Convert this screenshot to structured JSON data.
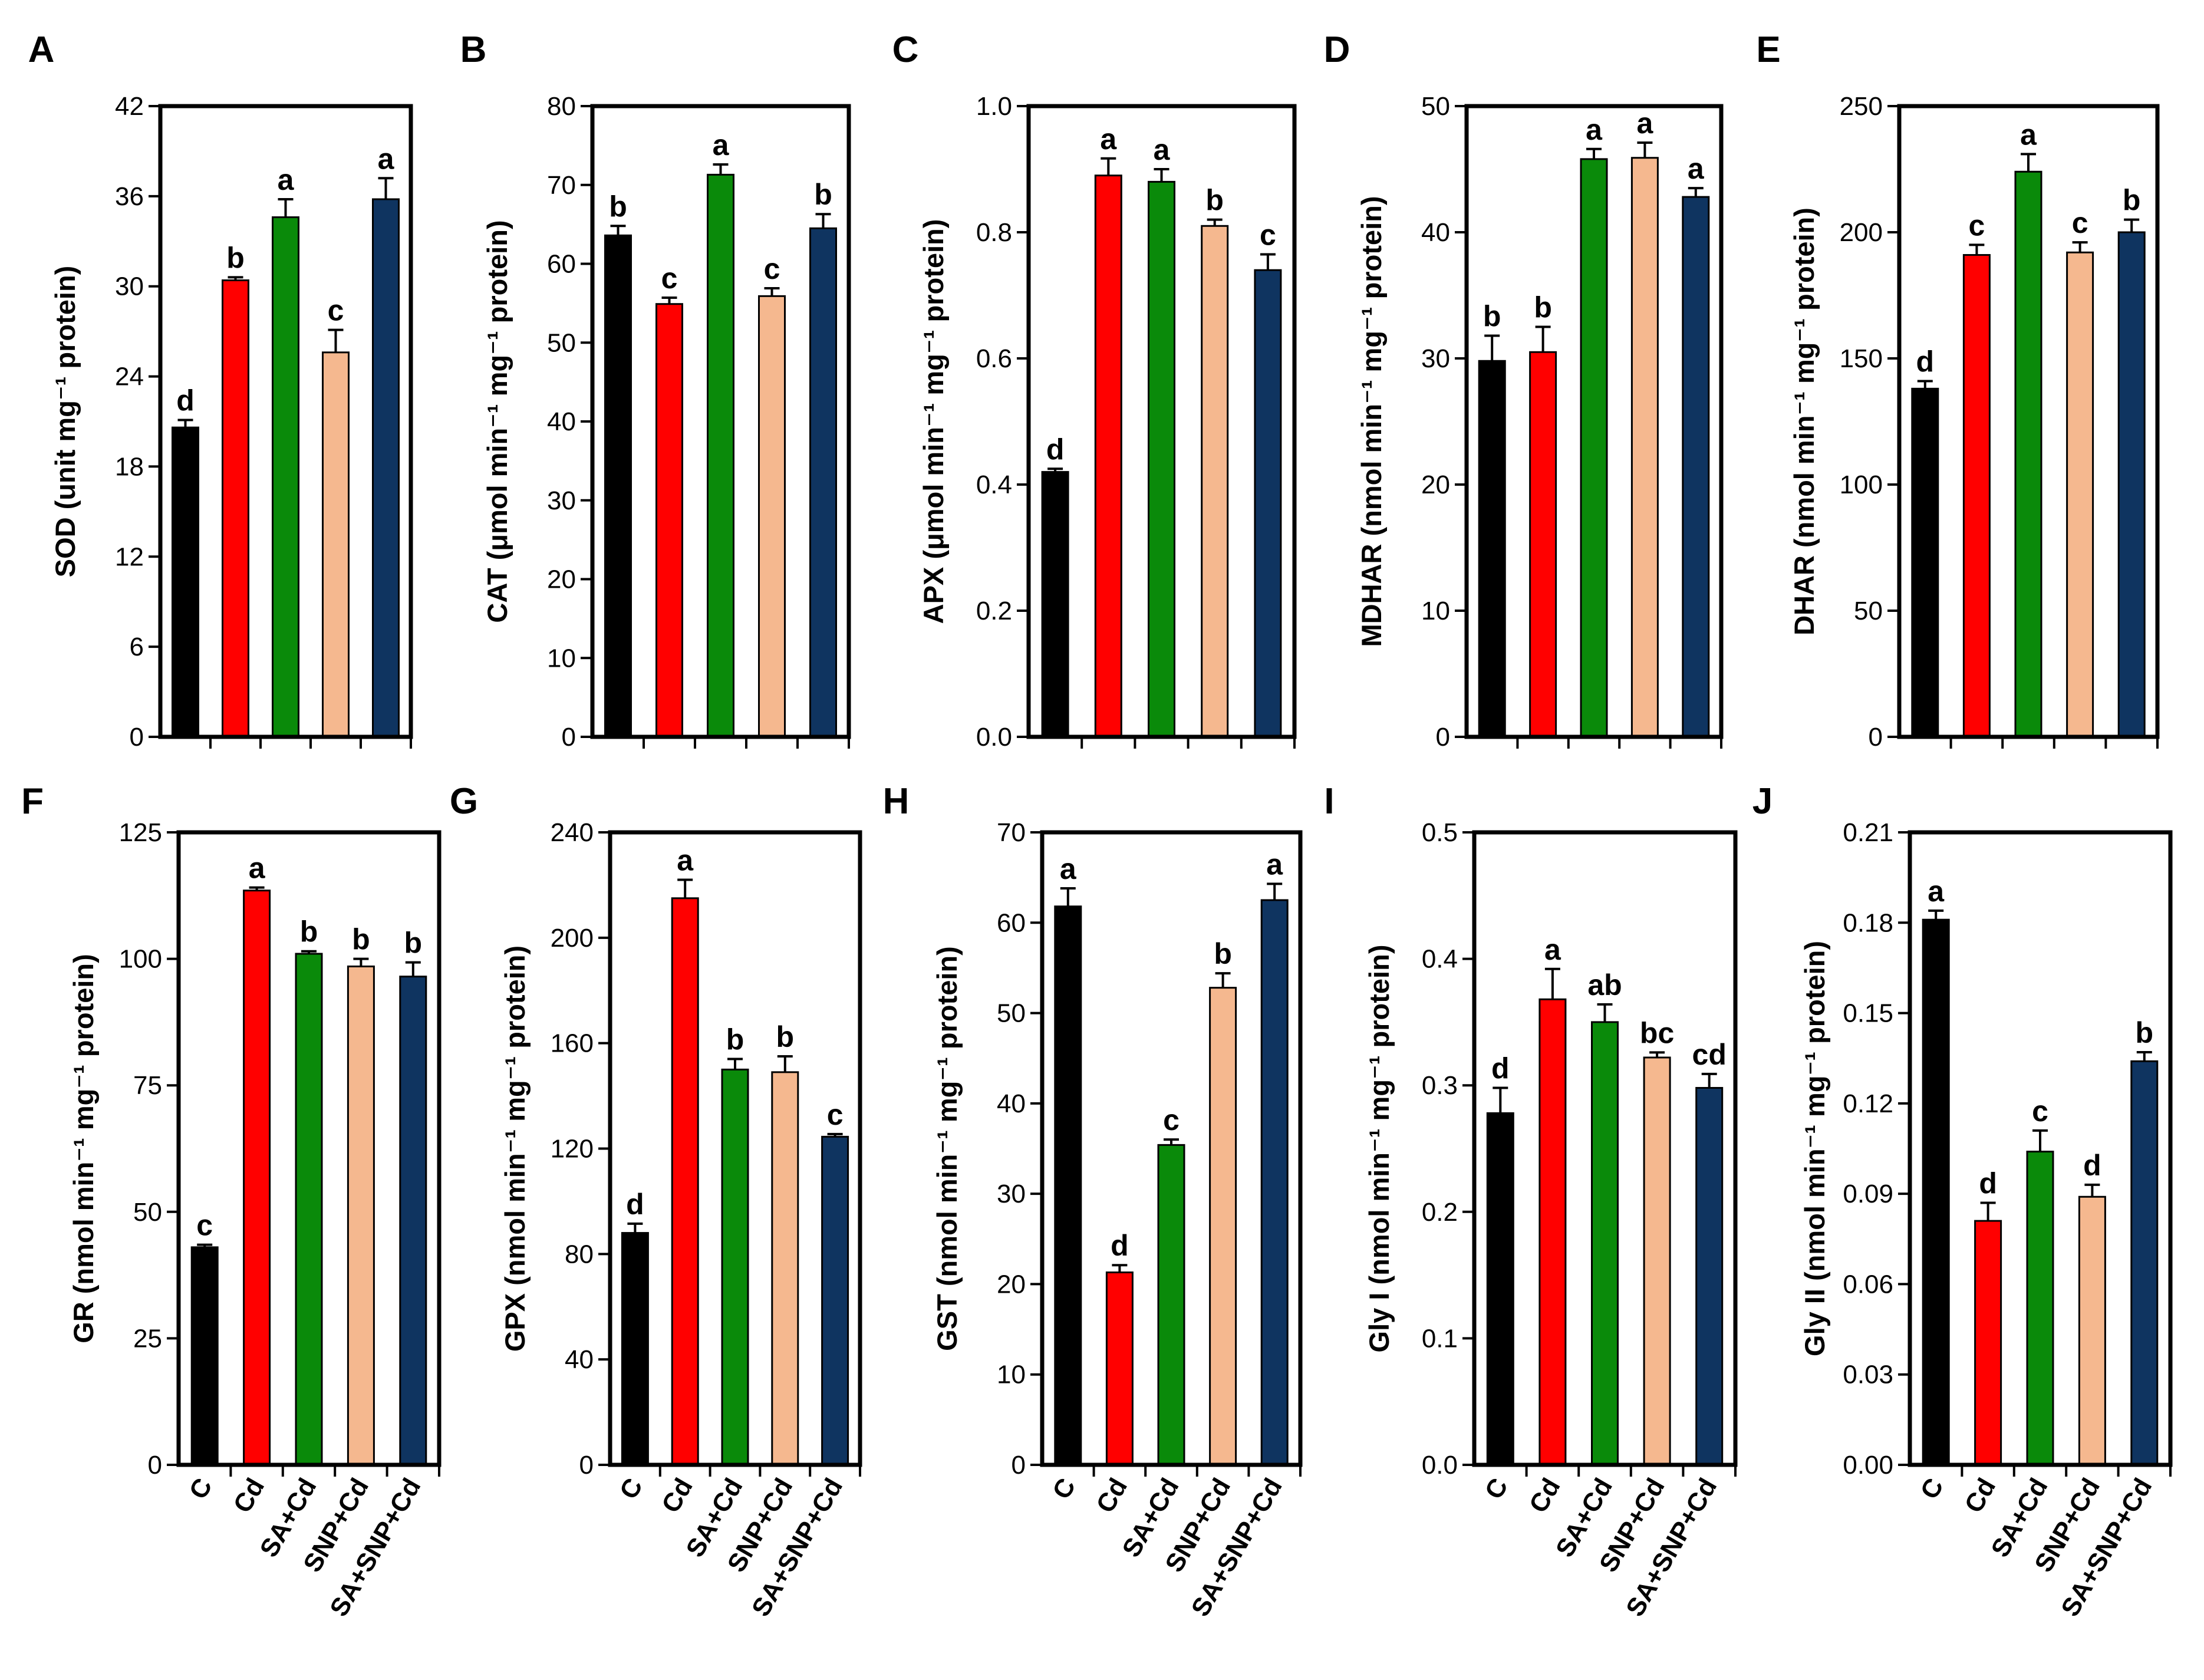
{
  "categories": [
    "C",
    "Cd",
    "SA+Cd",
    "SNP+Cd",
    "SA+SNP+Cd"
  ],
  "colors": [
    "#000000",
    "#ff0000",
    "#0a8a0a",
    "#f5b88f",
    "#0f3460"
  ],
  "chart_data": [
    {
      "type": "bar",
      "panel": "A",
      "ylabel": "SOD (unit mg⁻¹ protein)",
      "ylim": [
        0,
        42
      ],
      "yticks": [
        0,
        6,
        12,
        18,
        24,
        30,
        36,
        42
      ],
      "tick_labels": [
        "0",
        "6",
        "12",
        "18",
        "24",
        "30",
        "36",
        "42"
      ],
      "values": [
        20.6,
        30.4,
        34.6,
        25.6,
        35.8
      ],
      "errors": [
        0.5,
        0.2,
        1.2,
        1.5,
        1.4
      ],
      "letters": [
        "d",
        "b",
        "a",
        "c",
        "a"
      ]
    },
    {
      "type": "bar",
      "panel": "B",
      "ylabel": "CAT (μmol min⁻¹ mg⁻¹ protein)",
      "ylim": [
        0,
        80
      ],
      "yticks": [
        0,
        10,
        20,
        30,
        40,
        50,
        60,
        70,
        80
      ],
      "tick_labels": [
        "0",
        "10",
        "20",
        "30",
        "40",
        "50",
        "60",
        "70",
        "80"
      ],
      "values": [
        63.6,
        54.9,
        71.3,
        55.9,
        64.5
      ],
      "errors": [
        1.2,
        0.8,
        1.3,
        1.0,
        1.8
      ],
      "letters": [
        "b",
        "c",
        "a",
        "c",
        "b"
      ]
    },
    {
      "type": "bar",
      "panel": "C",
      "ylabel": "APX (μmol min⁻¹ mg⁻¹ protein)",
      "ylim": [
        0,
        1.0
      ],
      "yticks": [
        0,
        0.2,
        0.4,
        0.6,
        0.8,
        1.0
      ],
      "tick_labels": [
        "0.0",
        "0.2",
        "0.4",
        "0.6",
        "0.8",
        "1.0"
      ],
      "values": [
        0.42,
        0.89,
        0.88,
        0.81,
        0.74
      ],
      "errors": [
        0.005,
        0.027,
        0.02,
        0.01,
        0.025
      ],
      "letters": [
        "d",
        "a",
        "a",
        "b",
        "c"
      ]
    },
    {
      "type": "bar",
      "panel": "D",
      "ylabel": "MDHAR (nmol min⁻¹ mg⁻¹ protein)",
      "ylim": [
        0,
        50
      ],
      "yticks": [
        0,
        10,
        20,
        30,
        40,
        50
      ],
      "tick_labels": [
        "0",
        "10",
        "20",
        "30",
        "40",
        "50"
      ],
      "values": [
        29.8,
        30.5,
        45.8,
        45.9,
        42.8
      ],
      "errors": [
        2.0,
        2.0,
        0.8,
        1.2,
        0.7
      ],
      "letters": [
        "b",
        "b",
        "a",
        "a",
        "a"
      ]
    },
    {
      "type": "bar",
      "panel": "E",
      "ylabel": "DHAR (nmol min⁻¹ mg⁻¹ protein)",
      "ylim": [
        0,
        250
      ],
      "yticks": [
        0,
        50,
        100,
        150,
        200,
        250
      ],
      "tick_labels": [
        "0",
        "50",
        "100",
        "150",
        "200",
        "250"
      ],
      "values": [
        138,
        191,
        224,
        192,
        200
      ],
      "errors": [
        3,
        4,
        7,
        4,
        5
      ],
      "letters": [
        "d",
        "c",
        "a",
        "c",
        "b"
      ]
    },
    {
      "type": "bar",
      "panel": "F",
      "ylabel": "GR (nmol min⁻¹ mg⁻¹ protein)",
      "ylim": [
        0,
        125
      ],
      "yticks": [
        0,
        25,
        50,
        75,
        100,
        125
      ],
      "tick_labels": [
        "0",
        "25",
        "50",
        "75",
        "100",
        "125"
      ],
      "values": [
        43,
        113.5,
        101,
        98.5,
        96.5
      ],
      "errors": [
        0.5,
        0.6,
        0.5,
        1.5,
        2.8
      ],
      "letters": [
        "c",
        "a",
        "b",
        "b",
        "b"
      ]
    },
    {
      "type": "bar",
      "panel": "G",
      "ylabel": "GPX (nmol min⁻¹ mg⁻¹ protein)",
      "ylim": [
        0,
        240
      ],
      "yticks": [
        0,
        40,
        80,
        120,
        160,
        200,
        240
      ],
      "tick_labels": [
        "0",
        "40",
        "80",
        "120",
        "160",
        "200",
        "240"
      ],
      "values": [
        88,
        215,
        150,
        149,
        124.5
      ],
      "errors": [
        3.5,
        7,
        4,
        6,
        1
      ],
      "letters": [
        "d",
        "a",
        "b",
        "b",
        "c"
      ]
    },
    {
      "type": "bar",
      "panel": "H",
      "ylabel": "GST (nmol min⁻¹ mg⁻¹ protein)",
      "ylim": [
        0,
        70
      ],
      "yticks": [
        0,
        10,
        20,
        30,
        40,
        50,
        60,
        70
      ],
      "tick_labels": [
        "0",
        "10",
        "20",
        "30",
        "40",
        "50",
        "60",
        "70"
      ],
      "values": [
        61.8,
        21.3,
        35.4,
        52.8,
        62.5
      ],
      "errors": [
        2.0,
        0.8,
        0.6,
        1.6,
        1.8
      ],
      "letters": [
        "a",
        "d",
        "c",
        "b",
        "a"
      ]
    },
    {
      "type": "bar",
      "panel": "I",
      "ylabel": "Gly I (nmol min⁻¹ mg⁻¹ protein)",
      "ylim": [
        0,
        0.5
      ],
      "yticks": [
        0,
        0.1,
        0.2,
        0.3,
        0.4,
        0.5
      ],
      "tick_labels": [
        "0.0",
        "0.1",
        "0.2",
        "0.3",
        "0.4",
        "0.5"
      ],
      "values": [
        0.278,
        0.368,
        0.35,
        0.322,
        0.298
      ],
      "errors": [
        0.02,
        0.024,
        0.014,
        0.004,
        0.011
      ],
      "letters": [
        "d",
        "a",
        "ab",
        "bc",
        "cd"
      ]
    },
    {
      "type": "bar",
      "panel": "J",
      "ylabel": "Gly II (nmol min⁻¹ mg⁻¹ protein)",
      "ylim": [
        0,
        0.21
      ],
      "yticks": [
        0,
        0.03,
        0.06,
        0.09,
        0.12,
        0.15,
        0.18,
        0.21
      ],
      "tick_labels": [
        "0.00",
        "0.03",
        "0.06",
        "0.09",
        "0.12",
        "0.15",
        "0.18",
        "0.21"
      ],
      "values": [
        0.181,
        0.081,
        0.104,
        0.089,
        0.134
      ],
      "errors": [
        0.003,
        0.006,
        0.007,
        0.004,
        0.003
      ],
      "letters": [
        "a",
        "d",
        "c",
        "d",
        "b"
      ]
    }
  ]
}
